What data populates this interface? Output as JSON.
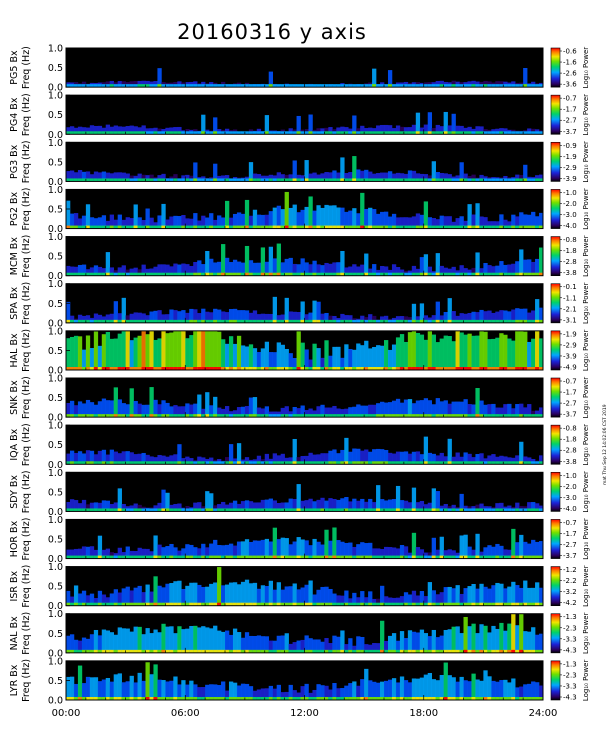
{
  "chart_data": {
    "type": "heatmap",
    "title": "20160316 y axis",
    "side_note": "mat Thu Sep 12 14:02:06 CST 2019",
    "x_ticks": [
      "00:00",
      "06:00",
      "12:00",
      "18:00",
      "24:00"
    ],
    "xlim": [
      "00:00",
      "24:00"
    ],
    "y_ticks": [
      "0.0",
      "0.5",
      "1.0"
    ],
    "ylim": [
      0.0,
      1.0
    ],
    "colormap": "rainbow (purple-blue-green-yellow-red)",
    "panels": [
      {
        "station": "PG5",
        "ylabel": "PG5 Bx",
        "ylabel2": "Freq (Hz)",
        "cbar_ticks": [
          "-0.6",
          "-1.6",
          "-2.6",
          "-3.6"
        ],
        "cbar_label": "Log₁₀ Power"
      },
      {
        "station": "PG4",
        "ylabel": "PG4 Bx",
        "ylabel2": "Freq (Hz)",
        "cbar_ticks": [
          "-0.7",
          "-1.7",
          "-2.7",
          "-3.7"
        ],
        "cbar_label": "Log₁₀ Power"
      },
      {
        "station": "PG3",
        "ylabel": "PG3 Bx",
        "ylabel2": "Freq (Hz)",
        "cbar_ticks": [
          "-0.9",
          "-1.9",
          "-2.9",
          "-3.9"
        ],
        "cbar_label": "Log₁₀ Power"
      },
      {
        "station": "PG2",
        "ylabel": "PG2 Bx",
        "ylabel2": "Freq (Hz)",
        "cbar_ticks": [
          "-1.0",
          "-2.0",
          "-3.0",
          "-4.0"
        ],
        "cbar_label": "Log₁₀ Power"
      },
      {
        "station": "MCM",
        "ylabel": "MCM Bx",
        "ylabel2": "Freq (Hz)",
        "cbar_ticks": [
          "-0.8",
          "-1.8",
          "-2.8",
          "-3.8"
        ],
        "cbar_label": "Log₁₀ Power"
      },
      {
        "station": "SPA",
        "ylabel": "SPA Bx",
        "ylabel2": "Freq (Hz)",
        "cbar_ticks": [
          "-0.1",
          "-1.1",
          "-2.1",
          "-3.1"
        ],
        "cbar_label": "Log₁₀ Power"
      },
      {
        "station": "HAL",
        "ylabel": "HAL Bx",
        "ylabel2": "Freq (Hz)",
        "cbar_ticks": [
          "-1.9",
          "-2.9",
          "-3.9",
          "-4.9"
        ],
        "cbar_label": "Log₁₀ Power"
      },
      {
        "station": "SNK",
        "ylabel": "SNK Bx",
        "ylabel2": "Freq (Hz)",
        "cbar_ticks": [
          "-0.7",
          "-1.7",
          "-2.7",
          "-3.7"
        ],
        "cbar_label": "Log₁₀ Power"
      },
      {
        "station": "IQA",
        "ylabel": "IQA Bx",
        "ylabel2": "Freq (Hz)",
        "cbar_ticks": [
          "-0.8",
          "-1.8",
          "-2.8",
          "-3.8"
        ],
        "cbar_label": "Log₁₀ Power"
      },
      {
        "station": "SDY",
        "ylabel": "SDY Bx",
        "ylabel2": "Freq (Hz)",
        "cbar_ticks": [
          "-1.0",
          "-2.0",
          "-3.0",
          "-4.0"
        ],
        "cbar_label": "Log₁₀ Power"
      },
      {
        "station": "HOR",
        "ylabel": "HOR Bx",
        "ylabel2": "Freq (Hz)",
        "cbar_ticks": [
          "-0.7",
          "-1.7",
          "-2.7",
          "-3.7"
        ],
        "cbar_label": "Log₁₀ Power"
      },
      {
        "station": "ISR",
        "ylabel": "ISR Bx",
        "ylabel2": "Freq (Hz)",
        "cbar_ticks": [
          "-1.2",
          "-2.2",
          "-3.2",
          "-4.2"
        ],
        "cbar_label": "Log₁₀ Power"
      },
      {
        "station": "NAL",
        "ylabel": "NAL Bx",
        "ylabel2": "Freq (Hz)",
        "cbar_ticks": [
          "-1.3",
          "-2.3",
          "-3.3",
          "-4.3"
        ],
        "cbar_label": "Log₁₀ Power"
      },
      {
        "station": "LYR",
        "ylabel": "LYR Bx",
        "ylabel2": "Freq (Hz)",
        "cbar_ticks": [
          "-1.3",
          "-2.3",
          "-3.3",
          "-4.3"
        ],
        "cbar_label": "Log₁₀ Power"
      }
    ]
  }
}
